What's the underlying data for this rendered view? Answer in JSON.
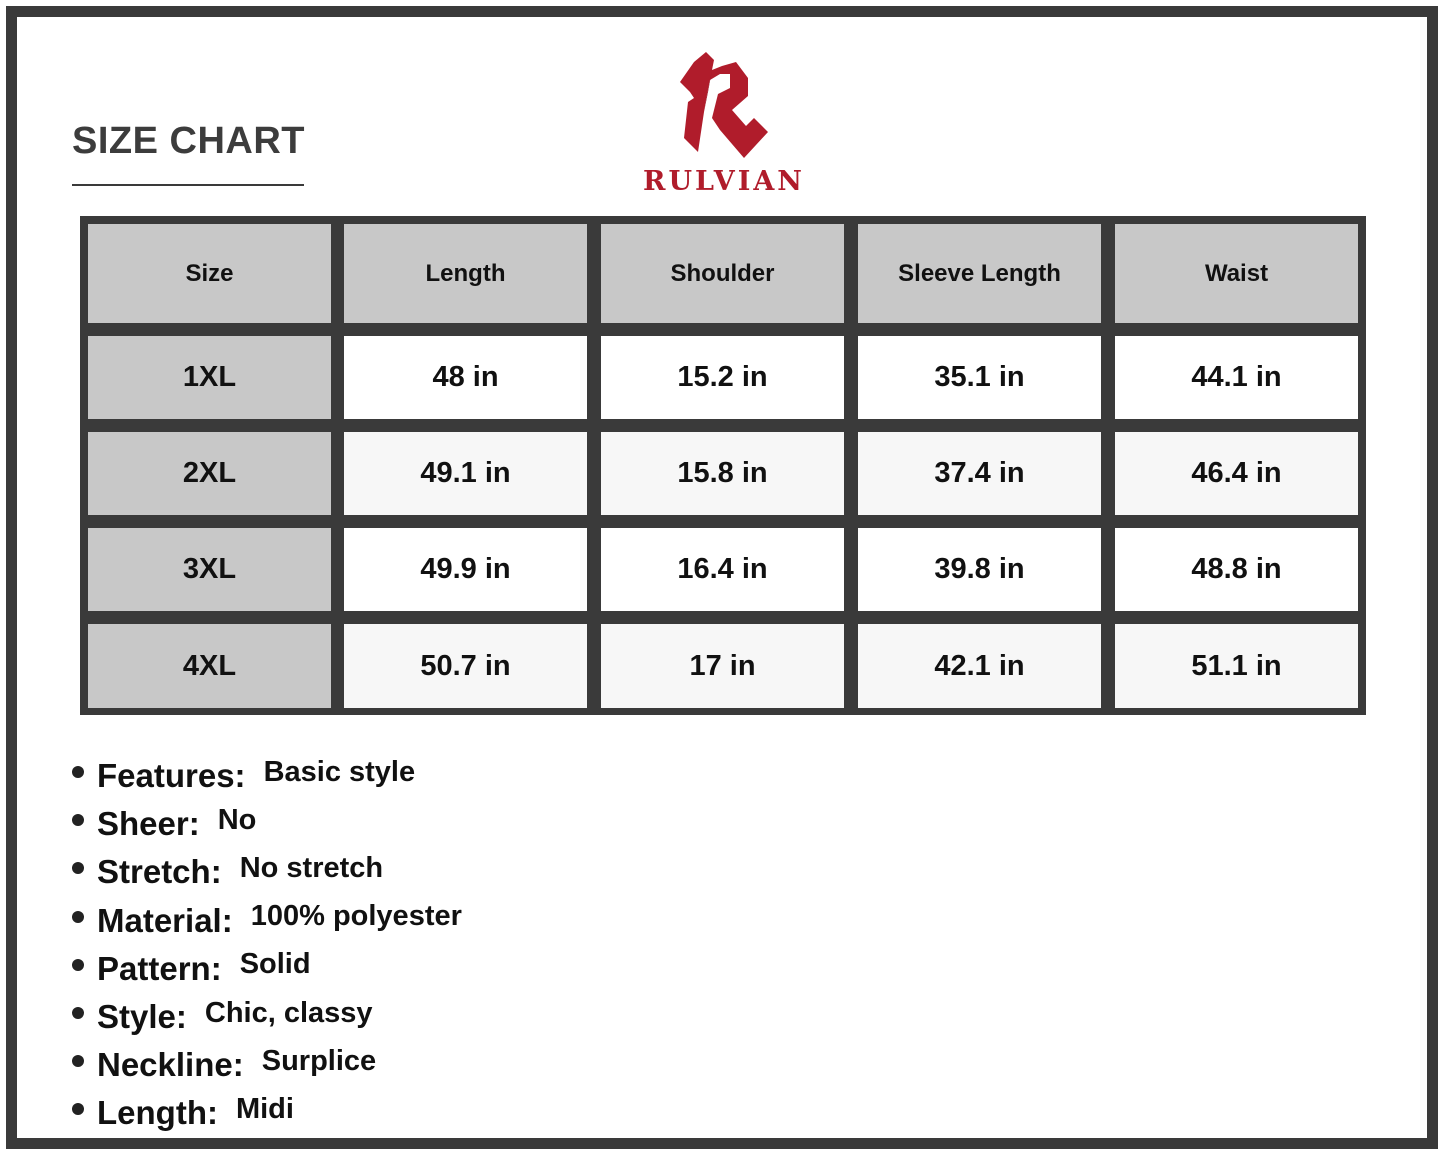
{
  "title": "SIZE CHART",
  "brand": {
    "name": "RULVIAN",
    "color": "#b01c2b"
  },
  "table": {
    "headers": [
      "Size",
      "Length",
      "Shoulder",
      "Sleeve Length",
      "Waist"
    ],
    "rows": [
      [
        "1XL",
        "48 in",
        "15.2 in",
        "35.1 in",
        "44.1 in"
      ],
      [
        "2XL",
        "49.1 in",
        "15.8 in",
        "37.4 in",
        "46.4 in"
      ],
      [
        "3XL",
        "49.9 in",
        "16.4 in",
        "39.8 in",
        "48.8 in"
      ],
      [
        "4XL",
        "50.7 in",
        "17 in",
        "42.1 in",
        "51.1 in"
      ]
    ]
  },
  "features": [
    {
      "label": "Features:",
      "value": "Basic style"
    },
    {
      "label": "Sheer:",
      "value": "No"
    },
    {
      "label": "Stretch:",
      "value": "No stretch"
    },
    {
      "label": "Material:",
      "value": "100% polyester"
    },
    {
      "label": "Pattern:",
      "value": "Solid"
    },
    {
      "label": "Style:",
      "value": "Chic, classy"
    },
    {
      "label": "Neckline:",
      "value": "Surplice"
    },
    {
      "label": "Length:",
      "value": "Midi"
    }
  ]
}
